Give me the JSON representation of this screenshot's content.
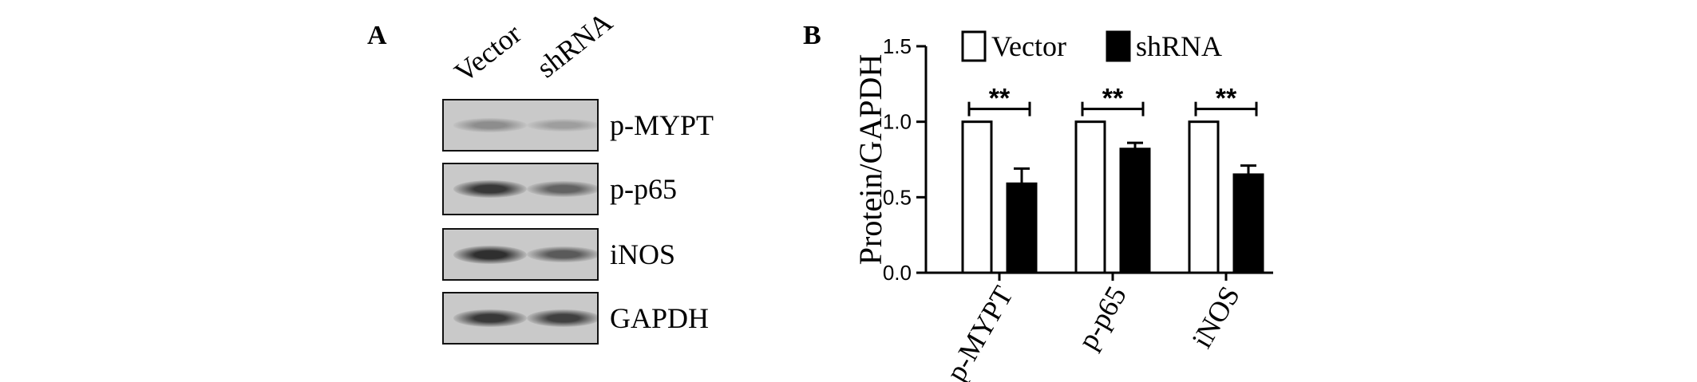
{
  "panel_a": {
    "letter": "A",
    "lanes": [
      "Vector",
      "shRNA"
    ],
    "blots": [
      {
        "label": "p-MYPT",
        "bands": [
          0.35,
          0.25
        ]
      },
      {
        "label": "p-p65",
        "bands": [
          0.85,
          0.6
        ]
      },
      {
        "label": "iNOS",
        "bands": [
          0.9,
          0.65
        ]
      },
      {
        "label": "GAPDH",
        "bands": [
          0.85,
          0.8
        ]
      }
    ]
  },
  "panel_b": {
    "letter": "B"
  },
  "chart_data": {
    "type": "bar",
    "categories": [
      "p-MYPT",
      "p-p65",
      "iNOS"
    ],
    "series": [
      {
        "name": "Vector",
        "values": [
          1.0,
          1.0,
          1.0
        ],
        "errors": [
          0,
          0,
          0
        ],
        "color": "#ffffff"
      },
      {
        "name": "shRNA",
        "values": [
          0.59,
          0.82,
          0.65
        ],
        "errors": [
          0.1,
          0.04,
          0.06
        ],
        "color": "#000000"
      }
    ],
    "ylabel": "Protein/GAPDH",
    "xlabel": "",
    "ylim": [
      0,
      1.5
    ],
    "yticks": [
      "0.0",
      "0.5",
      "1.0",
      "1.5"
    ],
    "significance": [
      "**",
      "**",
      "**"
    ],
    "legend_position": "top",
    "grid": false
  }
}
